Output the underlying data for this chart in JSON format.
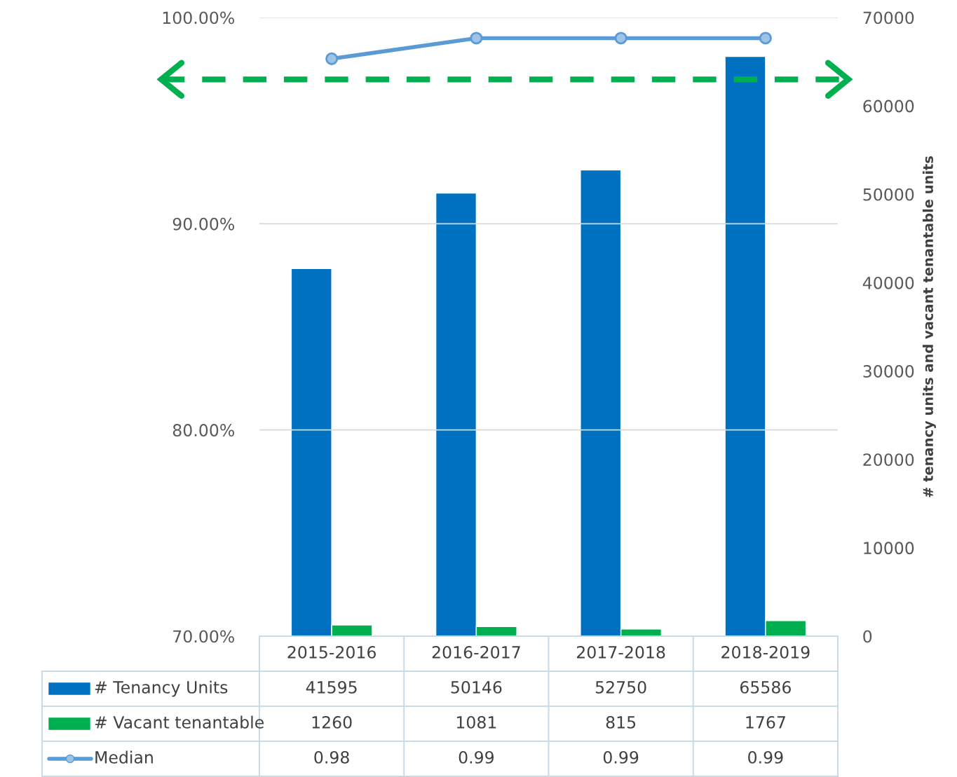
{
  "chart_data": {
    "type": "bar",
    "categories": [
      "2015-2016",
      "2016-2017",
      "2017-2018",
      "2018-2019"
    ],
    "series": [
      {
        "name": "# Tenancy Units",
        "color": "#0070c0",
        "values": [
          41595,
          50146,
          52750,
          65586
        ],
        "axis": "y2"
      },
      {
        "name": "# Vacant tenantable",
        "color": "#00b050",
        "values": [
          1260,
          1081,
          815,
          1767
        ],
        "axis": "y2"
      },
      {
        "name": "Median",
        "type": "line",
        "color": "#5b9bd5",
        "marker": "circle",
        "values": [
          0.98,
          0.99,
          0.99,
          0.99
        ],
        "axis": "y"
      }
    ],
    "ylim": [
      0.7,
      1.0
    ],
    "yticks": [
      {
        "value": 0.7,
        "label": "70.00%"
      },
      {
        "value": 0.8,
        "label": "80.00%"
      },
      {
        "value": 0.9,
        "label": "90.00%"
      },
      {
        "value": 1.0,
        "label": "100.00%"
      }
    ],
    "y2lim": [
      0,
      70000
    ],
    "y2ticks": [
      0,
      10000,
      20000,
      30000,
      40000,
      50000,
      60000,
      70000
    ],
    "y2label": "# tenancy units and vacant tenantable units",
    "grid": "y",
    "legend": "bottom left",
    "ref_lines": [
      {
        "axis": "y",
        "value": 0.97,
        "color": "#00b050",
        "line_style": "dashed"
      }
    ],
    "data_labels": true
  }
}
